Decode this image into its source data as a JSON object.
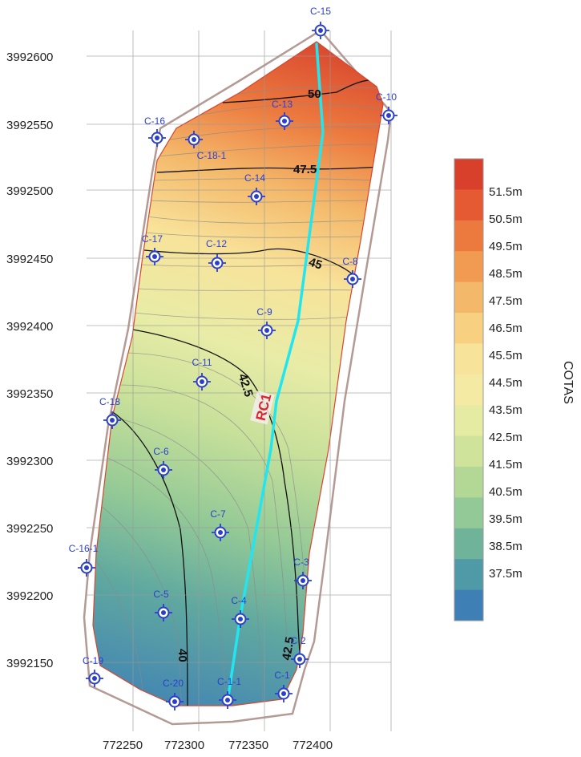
{
  "map": {
    "y_ticks": [
      "3992600",
      "3992550",
      "3992500",
      "3992450",
      "3992400",
      "3992350",
      "3992300",
      "3992250",
      "3992200",
      "3992150"
    ],
    "x_ticks": [
      "772250",
      "772300",
      "772350",
      "772400"
    ],
    "contour_labels": [
      "50",
      "47.5",
      "45",
      "42.5",
      "42.5",
      "40"
    ],
    "line_label": "RC1",
    "line_color": "#22e6ef",
    "points": [
      {
        "name": "C-15"
      },
      {
        "name": "C-10"
      },
      {
        "name": "C-13"
      },
      {
        "name": "C-16"
      },
      {
        "name": "C-18-1"
      },
      {
        "name": "C-14"
      },
      {
        "name": "C-17"
      },
      {
        "name": "C-12"
      },
      {
        "name": "C-8"
      },
      {
        "name": "C-9"
      },
      {
        "name": "C-11"
      },
      {
        "name": "C-18"
      },
      {
        "name": "C-6"
      },
      {
        "name": "C-7"
      },
      {
        "name": "C-16-1"
      },
      {
        "name": "C-3"
      },
      {
        "name": "C-5"
      },
      {
        "name": "C-4"
      },
      {
        "name": "C-2"
      },
      {
        "name": "C-19"
      },
      {
        "name": "C-20"
      },
      {
        "name": "C-1-1"
      },
      {
        "name": "C-1"
      }
    ],
    "marker_color": "#2a3fd0"
  },
  "legend": {
    "title": "COTAS",
    "labels": [
      "51.5m",
      "50.5m",
      "49.5m",
      "48.5m",
      "47.5m",
      "46.5m",
      "45.5m",
      "44.5m",
      "43.5m",
      "42.5m",
      "41.5m",
      "40.5m",
      "39.5m",
      "38.5m",
      "37.5m"
    ],
    "colors": [
      "#d8402c",
      "#e55a33",
      "#ec7a3f",
      "#f09a52",
      "#f4b86a",
      "#f7d081",
      "#f8e39a",
      "#f4eaa3",
      "#e6eba3",
      "#cfe39a",
      "#b3d896",
      "#93c996",
      "#6fb49a",
      "#4f9aa6",
      "#3e7fb6"
    ]
  }
}
